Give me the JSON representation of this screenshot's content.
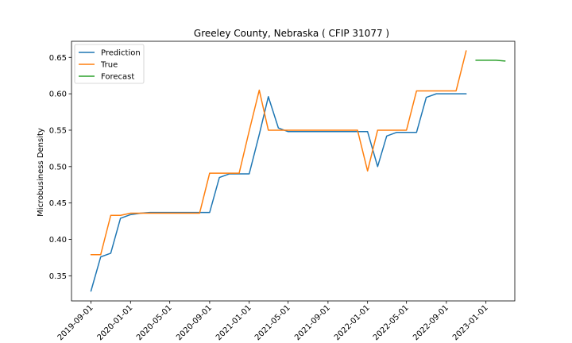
{
  "chart_data": {
    "type": "line",
    "title": "Greeley County, Nebraska ( CFIP 31077 )",
    "xlabel": "",
    "ylabel": "Microbusiness Density",
    "xlim": [
      "2019-07-03",
      "2023-03-31"
    ],
    "ylim": [
      0.3155,
      0.6721
    ],
    "yticks": [
      0.35,
      0.4,
      0.45,
      0.5,
      0.55,
      0.6,
      0.65
    ],
    "ytick_labels": [
      "0.35",
      "0.40",
      "0.45",
      "0.50",
      "0.55",
      "0.60",
      "0.65"
    ],
    "xticks": [
      "2019-09-01",
      "2020-01-01",
      "2020-05-01",
      "2020-09-01",
      "2021-01-01",
      "2021-05-01",
      "2021-09-01",
      "2022-01-01",
      "2022-05-01",
      "2022-09-01",
      "2023-01-01"
    ],
    "xtick_labels": [
      "2019-09-01",
      "2020-01-01",
      "2020-05-01",
      "2020-09-01",
      "2021-01-01",
      "2021-05-01",
      "2021-09-01",
      "2022-01-01",
      "2022-05-01",
      "2022-09-01",
      "2023-01-01"
    ],
    "grid": false,
    "legend_position": "upper-left",
    "series": [
      {
        "name": "Prediction",
        "color": "#1f77b4",
        "x": [
          "2019-09-01",
          "2019-10-01",
          "2019-11-01",
          "2019-12-01",
          "2020-01-01",
          "2020-02-01",
          "2020-03-01",
          "2020-04-01",
          "2020-05-01",
          "2020-06-01",
          "2020-07-01",
          "2020-08-01",
          "2020-09-01",
          "2020-10-01",
          "2020-11-01",
          "2020-12-01",
          "2021-01-01",
          "2021-02-01",
          "2021-03-01",
          "2021-04-01",
          "2021-05-01",
          "2021-06-01",
          "2021-07-01",
          "2021-08-01",
          "2021-09-01",
          "2021-10-01",
          "2021-11-01",
          "2021-12-01",
          "2022-01-01",
          "2022-02-01",
          "2022-03-01",
          "2022-04-01",
          "2022-05-01",
          "2022-06-01",
          "2022-07-01",
          "2022-08-01",
          "2022-09-01",
          "2022-10-01",
          "2022-11-01"
        ],
        "y": [
          0.329,
          0.376,
          0.381,
          0.429,
          0.434,
          0.436,
          0.437,
          0.437,
          0.437,
          0.437,
          0.437,
          0.437,
          0.437,
          0.485,
          0.49,
          0.49,
          0.49,
          0.544,
          0.596,
          0.553,
          0.548,
          0.548,
          0.548,
          0.548,
          0.548,
          0.548,
          0.548,
          0.548,
          0.548,
          0.5,
          0.542,
          0.547,
          0.547,
          0.547,
          0.595,
          0.6,
          0.6,
          0.6,
          0.6
        ]
      },
      {
        "name": "True",
        "color": "#ff7f0e",
        "x": [
          "2019-09-01",
          "2019-10-01",
          "2019-11-01",
          "2019-12-01",
          "2020-01-01",
          "2020-02-01",
          "2020-03-01",
          "2020-04-01",
          "2020-05-01",
          "2020-06-01",
          "2020-07-01",
          "2020-08-01",
          "2020-09-01",
          "2020-10-01",
          "2020-11-01",
          "2020-12-01",
          "2021-01-01",
          "2021-02-01",
          "2021-03-01",
          "2021-04-01",
          "2021-05-01",
          "2021-06-01",
          "2021-07-01",
          "2021-08-01",
          "2021-09-01",
          "2021-10-01",
          "2021-11-01",
          "2021-12-01",
          "2022-01-01",
          "2022-02-01",
          "2022-03-01",
          "2022-04-01",
          "2022-05-01",
          "2022-06-01",
          "2022-07-01",
          "2022-08-01",
          "2022-09-01",
          "2022-10-01",
          "2022-11-01"
        ],
        "y": [
          0.379,
          0.379,
          0.433,
          0.433,
          0.436,
          0.436,
          0.436,
          0.436,
          0.436,
          0.436,
          0.436,
          0.436,
          0.491,
          0.491,
          0.491,
          0.491,
          0.549,
          0.605,
          0.55,
          0.55,
          0.55,
          0.55,
          0.55,
          0.55,
          0.55,
          0.55,
          0.55,
          0.55,
          0.494,
          0.55,
          0.55,
          0.55,
          0.55,
          0.604,
          0.604,
          0.604,
          0.604,
          0.604,
          0.659
        ]
      },
      {
        "name": "Forecast",
        "color": "#2ca02c",
        "x": [
          "2022-12-01",
          "2023-01-01",
          "2023-02-01",
          "2023-03-01"
        ],
        "y": [
          0.646,
          0.646,
          0.646,
          0.645
        ]
      }
    ]
  }
}
